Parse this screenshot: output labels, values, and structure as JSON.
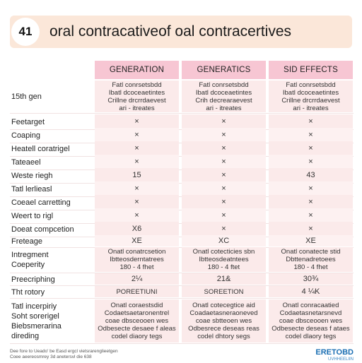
{
  "header": {
    "number": "41",
    "title": "oral contracativeof oal contracertives"
  },
  "columns": [
    "GENERATION",
    "GENERATICS",
    "SID EFFECTS"
  ],
  "rows": [
    {
      "label": "15th gen",
      "cells": [
        "Fatl conrsetsbdd\nIbatl dcoceaetintes\nCrillne drcrrdaevest\nari - itreates",
        "Fatl conrsetsbdd\nIbatl dcoceaetintes\nCrih decrearaevest\nari - itreates",
        "Fatl conrsetsbdd\nIbatl dcoceaetintes\nCrillne drcrrdaevest\nari - itreates"
      ]
    },
    {
      "label": "Feetarget",
      "cells": [
        "×",
        "×",
        "×"
      ]
    },
    {
      "label": "Coaping",
      "cells": [
        "×",
        "×",
        "×"
      ]
    },
    {
      "label": "Heatell coratrigel",
      "cells": [
        "×",
        "×",
        "×"
      ]
    },
    {
      "label": "Tateaeel",
      "cells": [
        "×",
        "×",
        "×"
      ]
    },
    {
      "label": "Weste riegh",
      "cells": [
        "15",
        "×",
        "43"
      ]
    },
    {
      "label": "Tatl lerlieasl",
      "cells": [
        "×",
        "×",
        "×"
      ]
    },
    {
      "label": "Coeael carretting",
      "cells": [
        "×",
        "×",
        "×"
      ]
    },
    {
      "label": "Weert to rigl",
      "cells": [
        "×",
        "×",
        "×"
      ]
    },
    {
      "label": "Doeat compcetion",
      "cells": [
        "X6",
        "×",
        "×"
      ]
    },
    {
      "label": "Freteage",
      "cells": [
        "XE",
        "XC",
        "XE"
      ]
    },
    {
      "label": "Intregment\nCoeperity",
      "cells": [
        "Onatl conatrcsetion\nIbtteosderntatrees\n180 - 4 fhet",
        "Onatl cotecticies sbn\nIbtteosdeatntees\n180 - 4 ftet",
        "Onatl conatecte stid\nDbttenadretoees\n180 - 4 fhet"
      ]
    },
    {
      "label": "Preecriphing",
      "cells": [
        "2¼",
        "21&",
        "30¾"
      ]
    },
    {
      "label": "Tht rotory",
      "cells": [
        "POREETIUNI",
        "SOREETION",
        "4 ¼K"
      ]
    },
    {
      "label": "Tatl incerpiriy\nSoht sorerigel\nBiebsmerarina\ndireding",
      "cells": [
        "Onatl coraestsdid\nCodaetsaetaronentrel\ncoae dbsceooen wes\nOdbesecte desaee f aleas\ncodel diaory tegs",
        "Onatl cotecegtice aid\nCoadaetasneraoneved\ncoae sbtteoen wes\nOdbesrece deseas reas\ncodel dhtory segs",
        "Onatl conracaatied\nCodaetasnetarsnevd\ncoae dbsceooen wes\nOdbesecte deseas f ataes\ncodel dlaory tegs"
      ]
    }
  ],
  "footer": "Dee fore to Ueado' be Easd ergcl vietsrarenglieetgen\nCoee aeereosmrey 3d anetersvl die 638",
  "brand": {
    "name": "ERETOBD",
    "tag": "UVHHEELIIN"
  }
}
